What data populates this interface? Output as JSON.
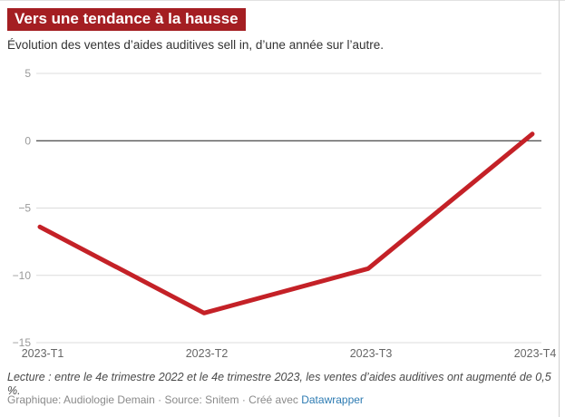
{
  "header": {
    "title": "Vers une tendance à la hausse",
    "subtitle": "Évolution des ventes d’aides auditives sell in, d’une année sur l’autre.",
    "title_bg": "#a41e22",
    "title_color": "#ffffff"
  },
  "chart_data": {
    "type": "line",
    "title": "Vers une tendance à la hausse",
    "subtitle": "Évolution des ventes d’aides auditives sell in, d’une année sur l’autre.",
    "categories": [
      "2023-T1",
      "2023-T2",
      "2023-T3",
      "2023-T4"
    ],
    "values": [
      -6.4,
      -12.8,
      -9.5,
      0.5
    ],
    "unit": "%",
    "xlabel": "",
    "ylabel": "",
    "ylim": [
      -15,
      5
    ],
    "yticks": [
      {
        "v": 5,
        "label": "5"
      },
      {
        "v": 0,
        "label": "0"
      },
      {
        "v": -5,
        "label": "−5"
      },
      {
        "v": -10,
        "label": "−10"
      },
      {
        "v": -15,
        "label": "−15"
      }
    ],
    "grid": true,
    "legend": false,
    "line_color": "#c42127",
    "grid_color": "#dcdcdc",
    "zero_line_color": "#1a1a1a",
    "ytick_color": "#9a9a9a",
    "xtick_color": "#666666"
  },
  "footer": {
    "note": "Lecture : entre le 4e trimestre 2022 et le 4e trimestre 2023, les ventes d’aides auditives ont augmenté de 0,5 %.",
    "credit_graphique": "Graphique: Audiologie Demain",
    "credit_source": "Source: Snitem",
    "credit_created": "Créé avec",
    "credit_link": "Datawrapper",
    "separator": " · ",
    "link_color": "#2d7bb2"
  }
}
